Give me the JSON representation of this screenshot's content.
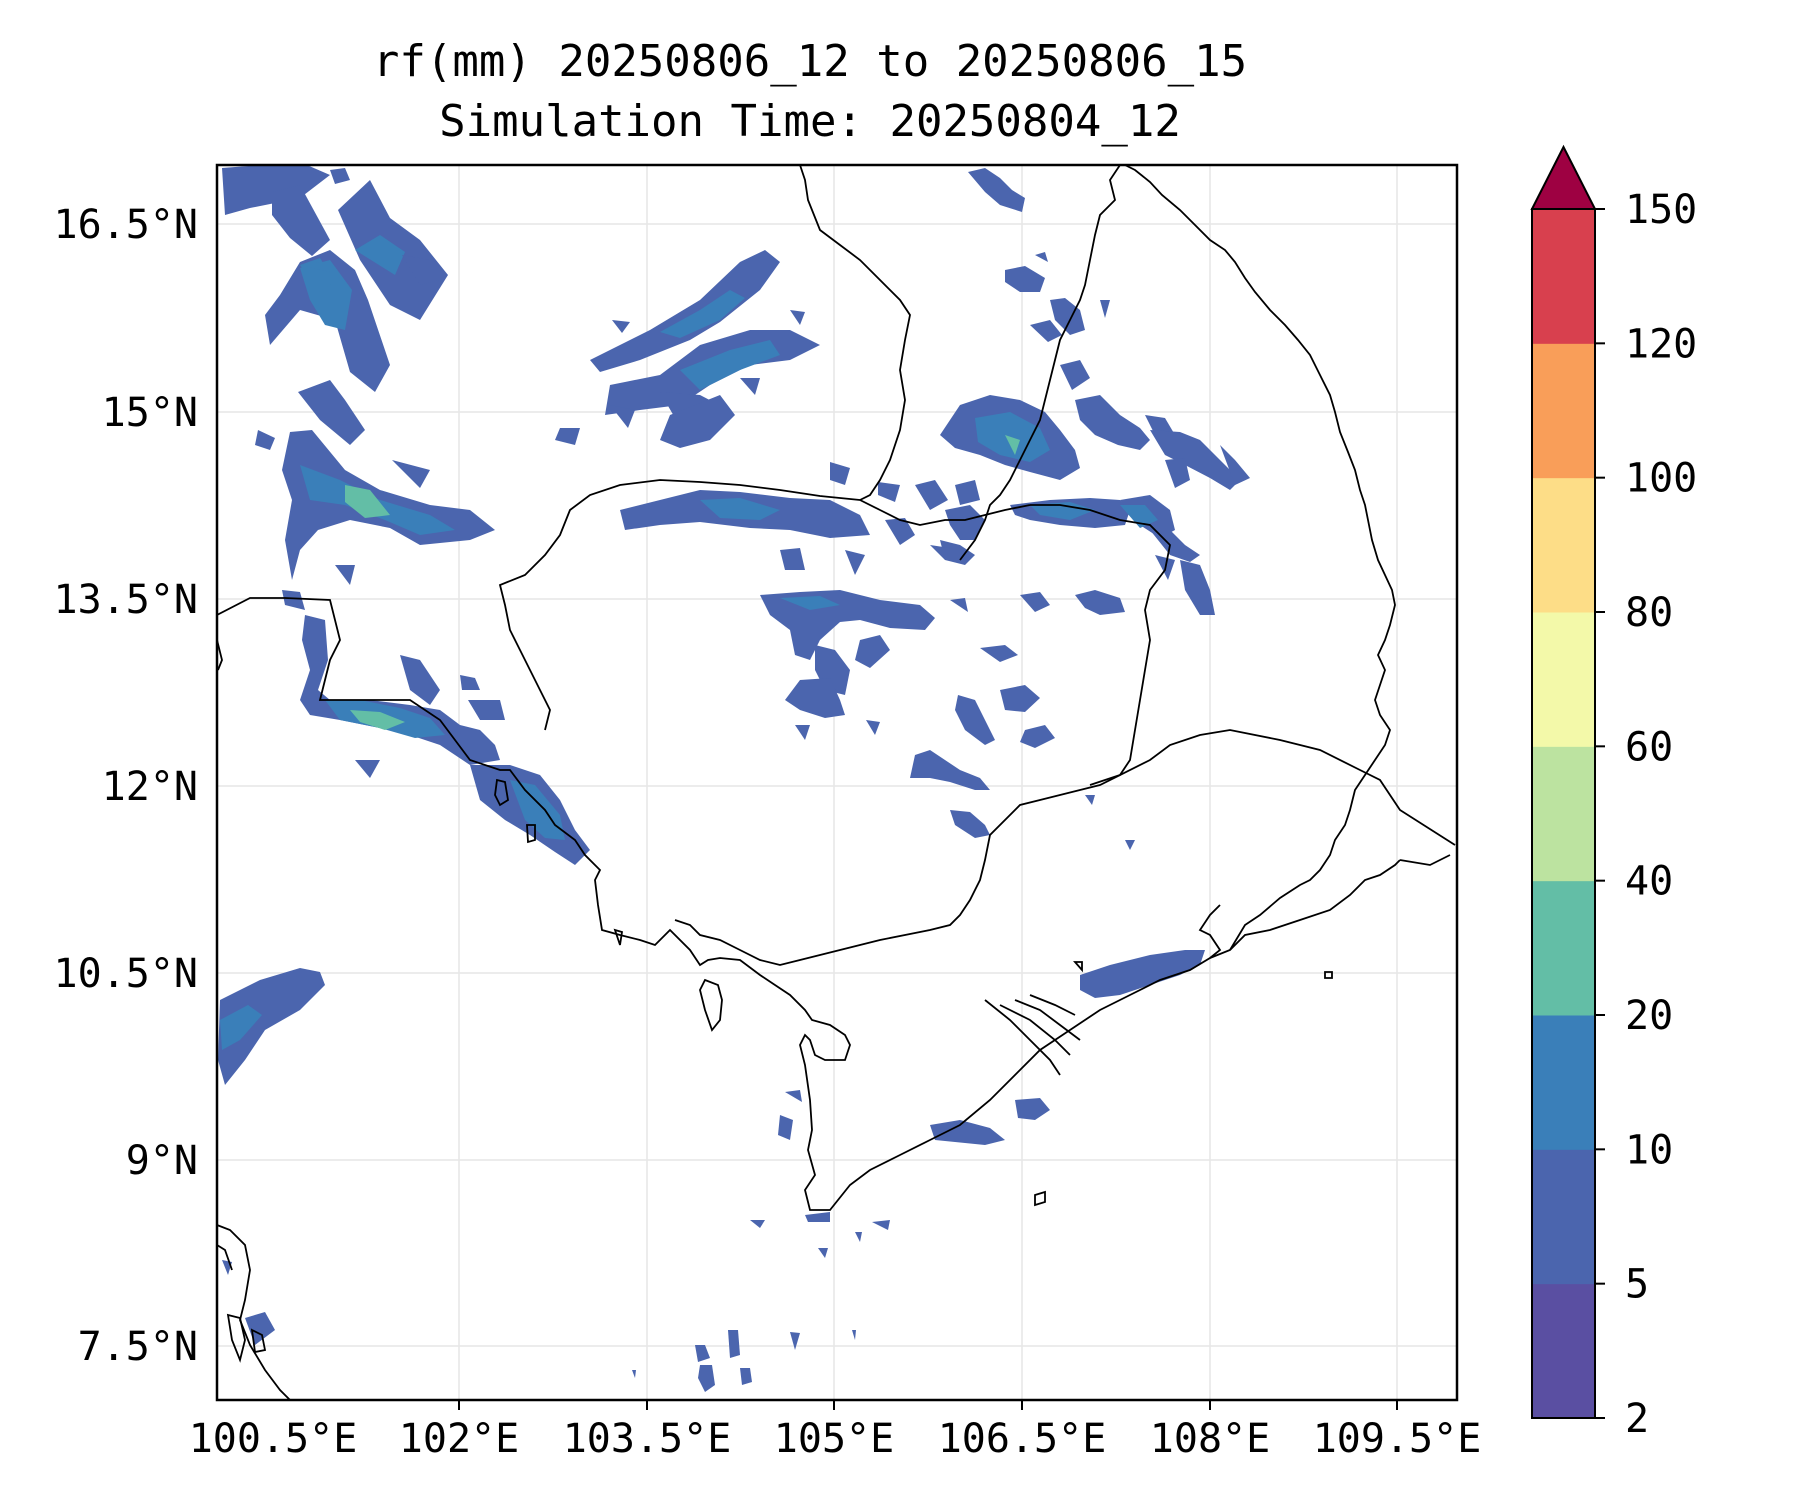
{
  "title": {
    "line1": "rf(mm) 20250806_12 to 20250806_15",
    "line2": "Simulation Time: 20250804_12"
  },
  "axes": {
    "x_ticks": [
      "100.5°E",
      "102°E",
      "103.5°E",
      "105°E",
      "106.5°E",
      "108°E",
      "109.5°E"
    ],
    "y_ticks": [
      "16.5°N",
      "15°N",
      "13.5°N",
      "12°N",
      "10.5°N",
      "9°N",
      "7.5°N"
    ]
  },
  "colorbar": {
    "levels": [
      "2",
      "5",
      "10",
      "20",
      "40",
      "60",
      "80",
      "100",
      "120",
      "150"
    ],
    "colors": [
      "#5a4fa2",
      "#4b65ae",
      "#3a7fb9",
      "#63bea6",
      "#bce3a0",
      "#f3f9a9",
      "#fddd87",
      "#f99e59",
      "#d8404e",
      "#9e0142"
    ],
    "extend": "max"
  },
  "map": {
    "ocean": "#ffffff",
    "coastline_color": "#000000",
    "grid": true
  }
}
